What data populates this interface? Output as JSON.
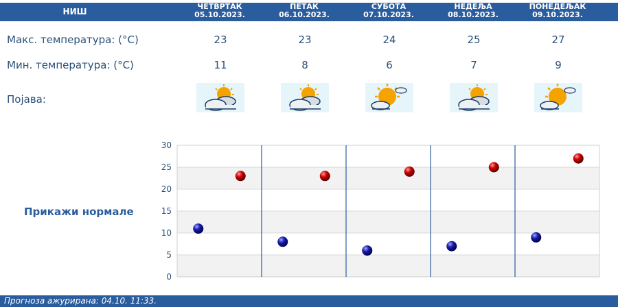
{
  "header": {
    "city": "НИШ",
    "days": [
      {
        "day": "ЧЕТВРТАК",
        "date": "05.10.2023."
      },
      {
        "day": "ПЕТАК",
        "date": "06.10.2023."
      },
      {
        "day": "СУБОТА",
        "date": "07.10.2023."
      },
      {
        "day": "НЕДЕЉА",
        "date": "08.10.2023."
      },
      {
        "day": "ПОНЕДЕЉАК",
        "date": "09.10.2023."
      }
    ]
  },
  "rows": {
    "max_label": "Макс. температура: (°C)",
    "min_label": "Мин. температура: (°C)",
    "phenomenon_label": "Појава:",
    "max": [
      "23",
      "23",
      "24",
      "25",
      "27"
    ],
    "min": [
      "11",
      "8",
      "6",
      "7",
      "9"
    ],
    "icons": [
      "partly-cloudy-icon",
      "partly-cloudy-icon",
      "mostly-sunny-icon",
      "partly-cloudy-icon",
      "mostly-sunny-icon"
    ]
  },
  "normals_link": "Прикажи нормале",
  "footer": "Прогноза ажурирана:  04.10. 11:33.",
  "colors": {
    "header": "#2a5d9e",
    "max_marker": "#cc0000",
    "min_marker": "#1a1aa8"
  },
  "chart_data": {
    "type": "scatter",
    "categories": [
      "05.10.2023.",
      "06.10.2023.",
      "07.10.2023.",
      "08.10.2023.",
      "09.10.2023."
    ],
    "series": [
      {
        "values": [
          11,
          8,
          6,
          7,
          9
        ]
      },
      {
        "values": [
          23,
          23,
          24,
          25,
          27
        ]
      }
    ],
    "ylim": [
      0,
      30
    ],
    "yticks": [
      0,
      5,
      10,
      15,
      20,
      25,
      30
    ],
    "grid": true
  }
}
